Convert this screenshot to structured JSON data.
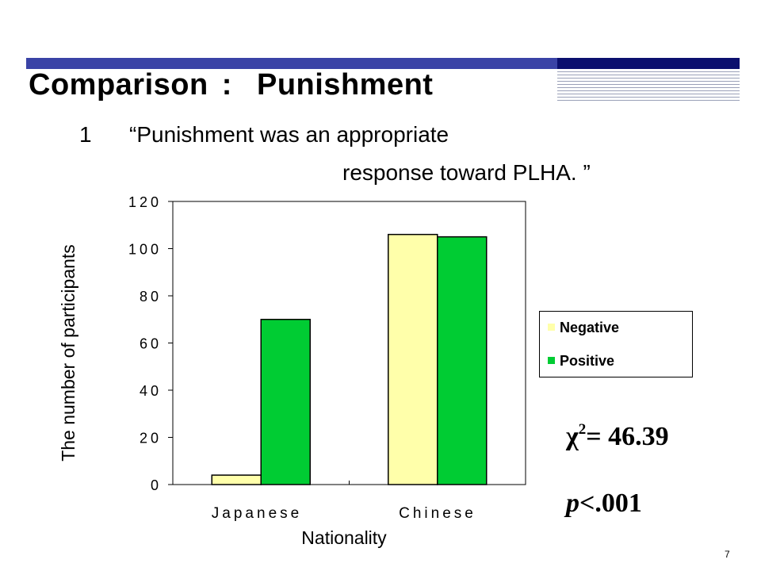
{
  "slide": {
    "title_left": "Comparison",
    "title_sep": ":",
    "title_right": "Punishment",
    "question_number": "1",
    "question_line1": "“Punishment was an appropriate",
    "question_line2": "response toward PLHA. ”",
    "page_number": "7"
  },
  "stats": {
    "chi_symbol": "χ",
    "chi_sup": "2",
    "chi_value": "= 46.39",
    "p_letter": "p",
    "p_value": "<.001"
  },
  "colors": {
    "negative": "#ffffaa",
    "positive": "#00cc33",
    "title_bar_light": "#3a43a6",
    "title_bar_dark": "#0b0f6e"
  },
  "chart_data": {
    "type": "bar",
    "categories": [
      "Japanese",
      "Chinese"
    ],
    "series": [
      {
        "name": "Negative",
        "values": [
          4,
          106
        ]
      },
      {
        "name": "Positive",
        "values": [
          70,
          105
        ]
      }
    ],
    "xlabel": "Nationality",
    "ylabel": "The number of participants",
    "ylim": [
      0,
      120
    ],
    "yticks": [
      0,
      20,
      40,
      60,
      80,
      100,
      120
    ],
    "grid": false,
    "legend_position": "right"
  }
}
